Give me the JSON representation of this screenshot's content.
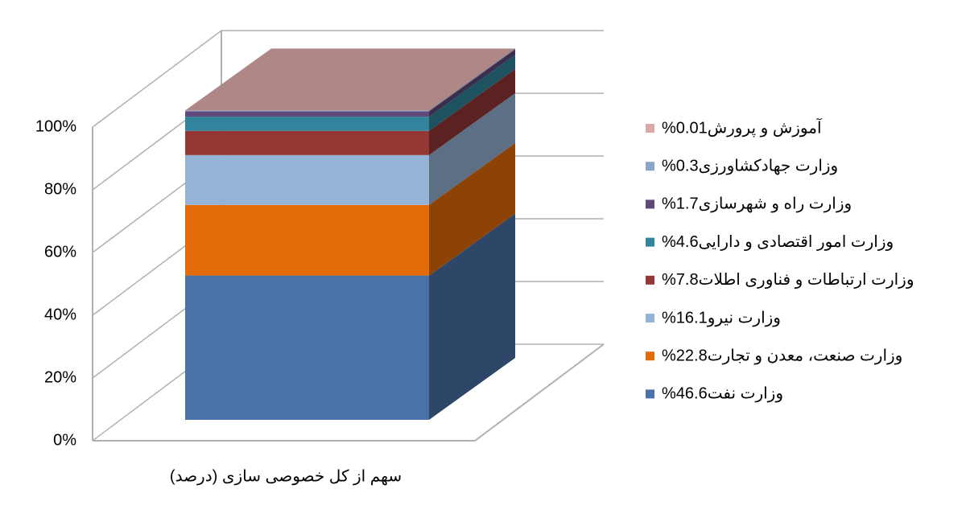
{
  "chart_data": {
    "type": "bar3d_stacked",
    "categories": [
      "سهم از کل خصوصی سازی (درصد)"
    ],
    "series": [
      {
        "name": "وزارت نفت46.6%",
        "color": "#4a72a8",
        "values": [
          46.6
        ]
      },
      {
        "name": "وزارت صنعت، معدن و تجارت22.8%",
        "color": "#e36c0a",
        "values": [
          22.8
        ]
      },
      {
        "name": "وزارت نیرو16.1%",
        "color": "#95b3d7",
        "values": [
          16.1
        ]
      },
      {
        "name": "وزارت ارتباطات و فناوری اطلات7.8%",
        "color": "#953735",
        "values": [
          7.8
        ]
      },
      {
        "name": "وزارت امور اقتصادی و دارایی4.6%",
        "color": "#31849b",
        "values": [
          4.6
        ]
      },
      {
        "name": "وزارت راه و شهرسازی1.7%",
        "color": "#5f497a",
        "values": [
          1.7
        ]
      },
      {
        "name": "وزارت جهادکشاورزی0.3%",
        "color": "#8aa5cb",
        "values": [
          0.3
        ]
      },
      {
        "name": "آموزش و پرورش0.01%",
        "color": "#d9a9a8",
        "values": [
          0.01
        ]
      }
    ],
    "ylim": [
      0,
      100
    ],
    "yticks": [
      {
        "value": 0,
        "label": "0%"
      },
      {
        "value": 20,
        "label": "20%"
      },
      {
        "value": 40,
        "label": "40%"
      },
      {
        "value": 60,
        "label": "60%"
      },
      {
        "value": 80,
        "label": "80%"
      },
      {
        "value": 100,
        "label": "100%"
      }
    ],
    "grid": true,
    "legend": "right"
  }
}
